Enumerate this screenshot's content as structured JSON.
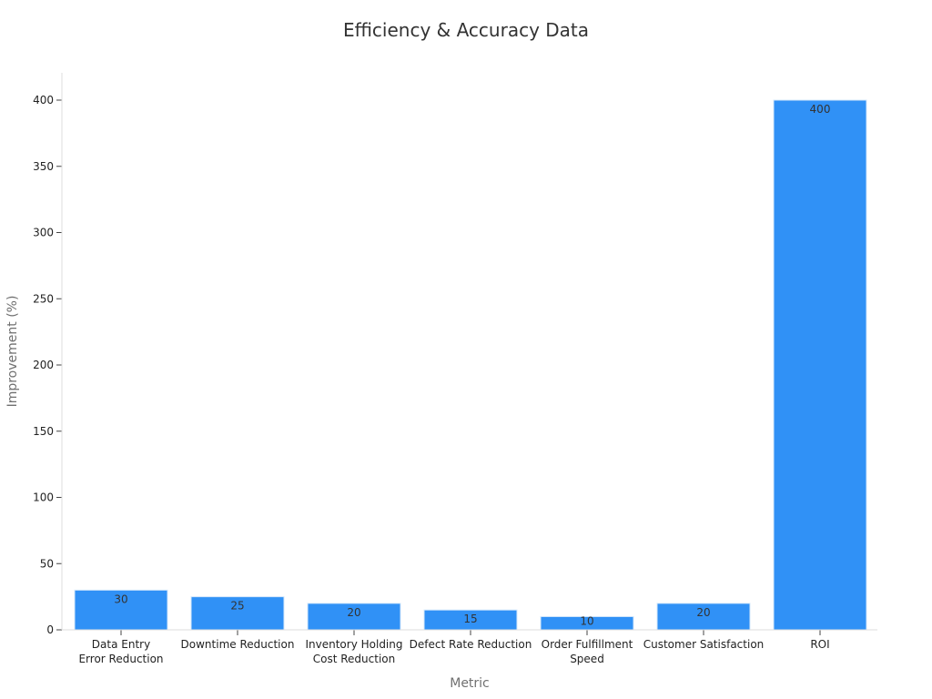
{
  "chart_data": {
    "type": "bar",
    "title": "Efficiency & Accuracy Data",
    "xlabel": "Metric",
    "ylabel": "Improvement (%)",
    "categories": [
      [
        "Data Entry",
        "Error Reduction"
      ],
      [
        "Downtime Reduction"
      ],
      [
        "Inventory Holding",
        "Cost Reduction"
      ],
      [
        "Defect Rate Reduction"
      ],
      [
        "Order Fulfillment",
        "Speed"
      ],
      [
        "Customer Satisfaction"
      ],
      [
        "ROI"
      ]
    ],
    "values": [
      30,
      25,
      20,
      15,
      10,
      20,
      400
    ],
    "ylim": [
      0,
      420
    ],
    "yticks": [
      0,
      50,
      100,
      150,
      200,
      250,
      300,
      350,
      400
    ],
    "grid": false,
    "bar_color": "#3091f6",
    "bar_edge_color": "#d6e8fb"
  }
}
